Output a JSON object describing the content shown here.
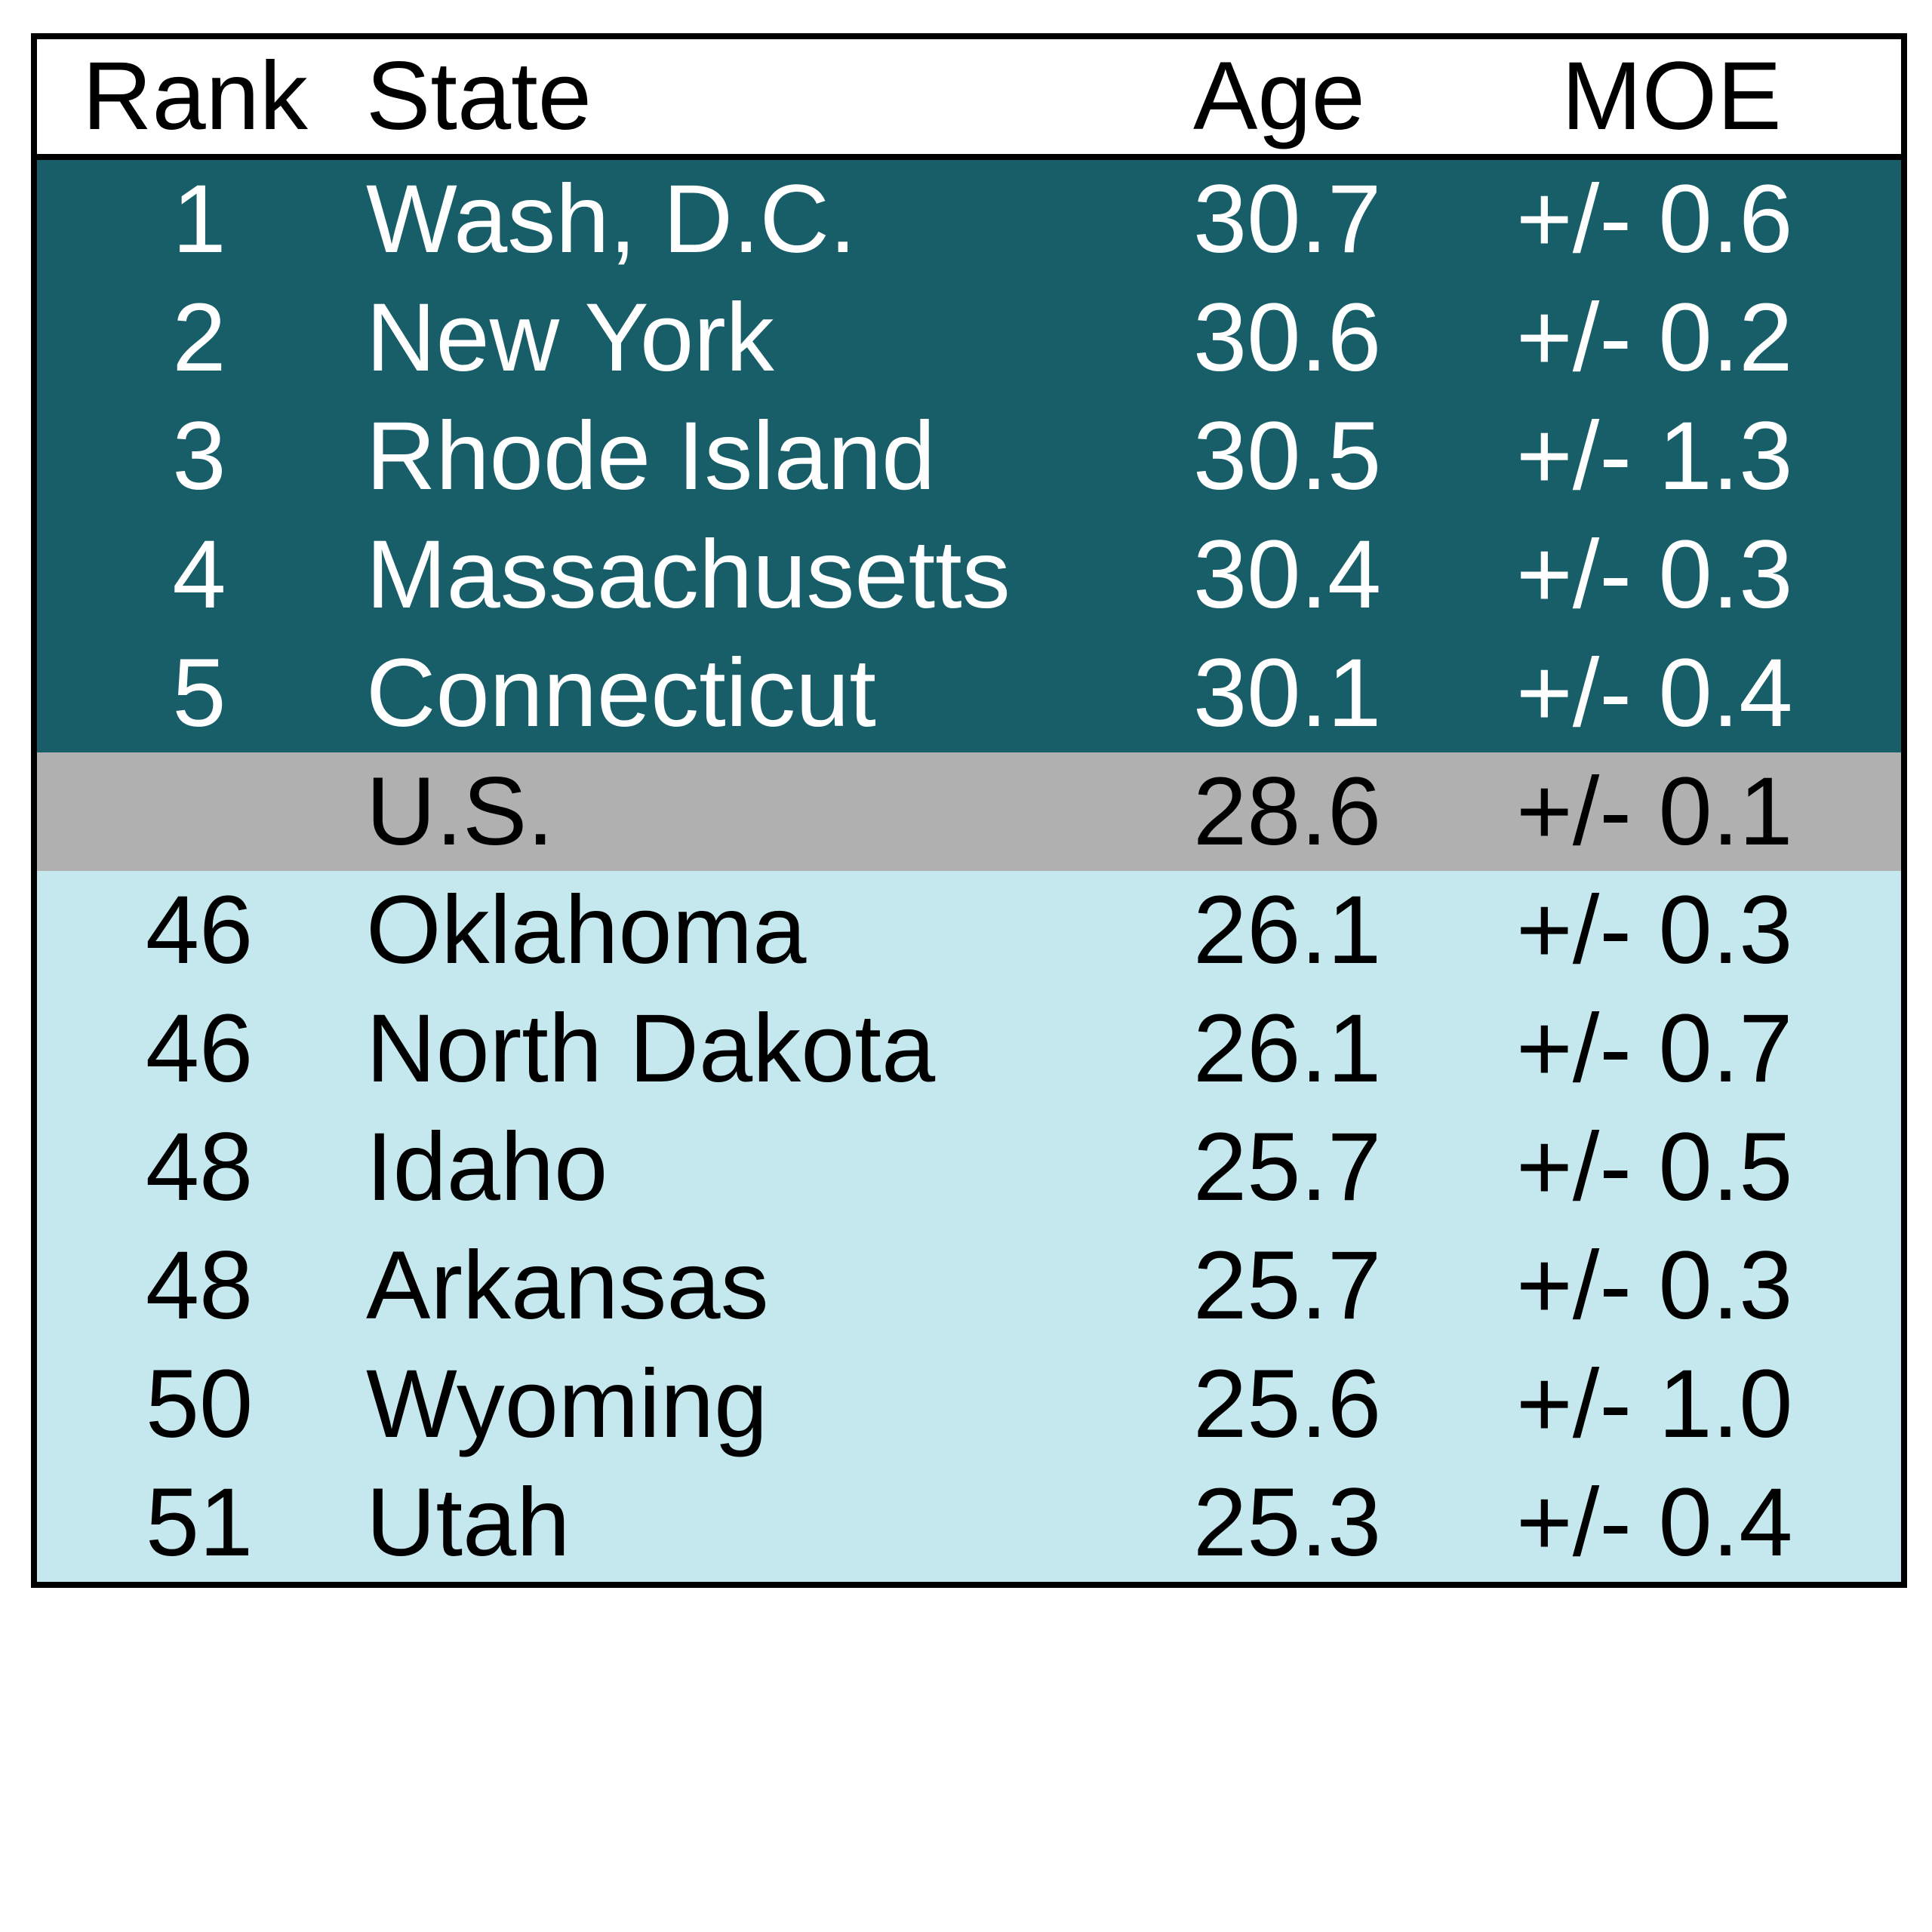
{
  "table": {
    "header": [
      "Rank",
      "State",
      "Age",
      "MOE"
    ],
    "sections": [
      {
        "rows": [
          [
            1,
            "Wash, D.C.",
            30.7,
            "+/- 0.6"
          ],
          [
            2,
            "New York",
            30.6,
            "+/- 0.2"
          ],
          [
            3,
            "Rhode Island",
            30.5,
            "+/- 1.3"
          ],
          [
            4,
            "Massachusetts",
            30.4,
            "+/- 0.3"
          ],
          [
            5,
            "Connecticut",
            30.1,
            "+/- 0.4"
          ]
        ]
      },
      {
        "rows": [
          [
            null,
            "U.S.",
            28.6,
            "+/- 0.1"
          ]
        ]
      },
      {
        "rows": [
          [
            46,
            "Oklahoma",
            26.1,
            "+/- 0.3"
          ],
          [
            46,
            "North Dakota",
            26.1,
            "+/- 0.7"
          ],
          [
            48,
            "Idaho",
            25.7,
            "+/- 0.5"
          ],
          [
            48,
            "Arkansas",
            25.7,
            "+/- 0.3"
          ],
          [
            50,
            "Wyoming",
            25.6,
            "+/- 1.0"
          ],
          [
            51,
            "Utah",
            25.3,
            "+/- 0.4"
          ]
        ]
      }
    ]
  }
}
